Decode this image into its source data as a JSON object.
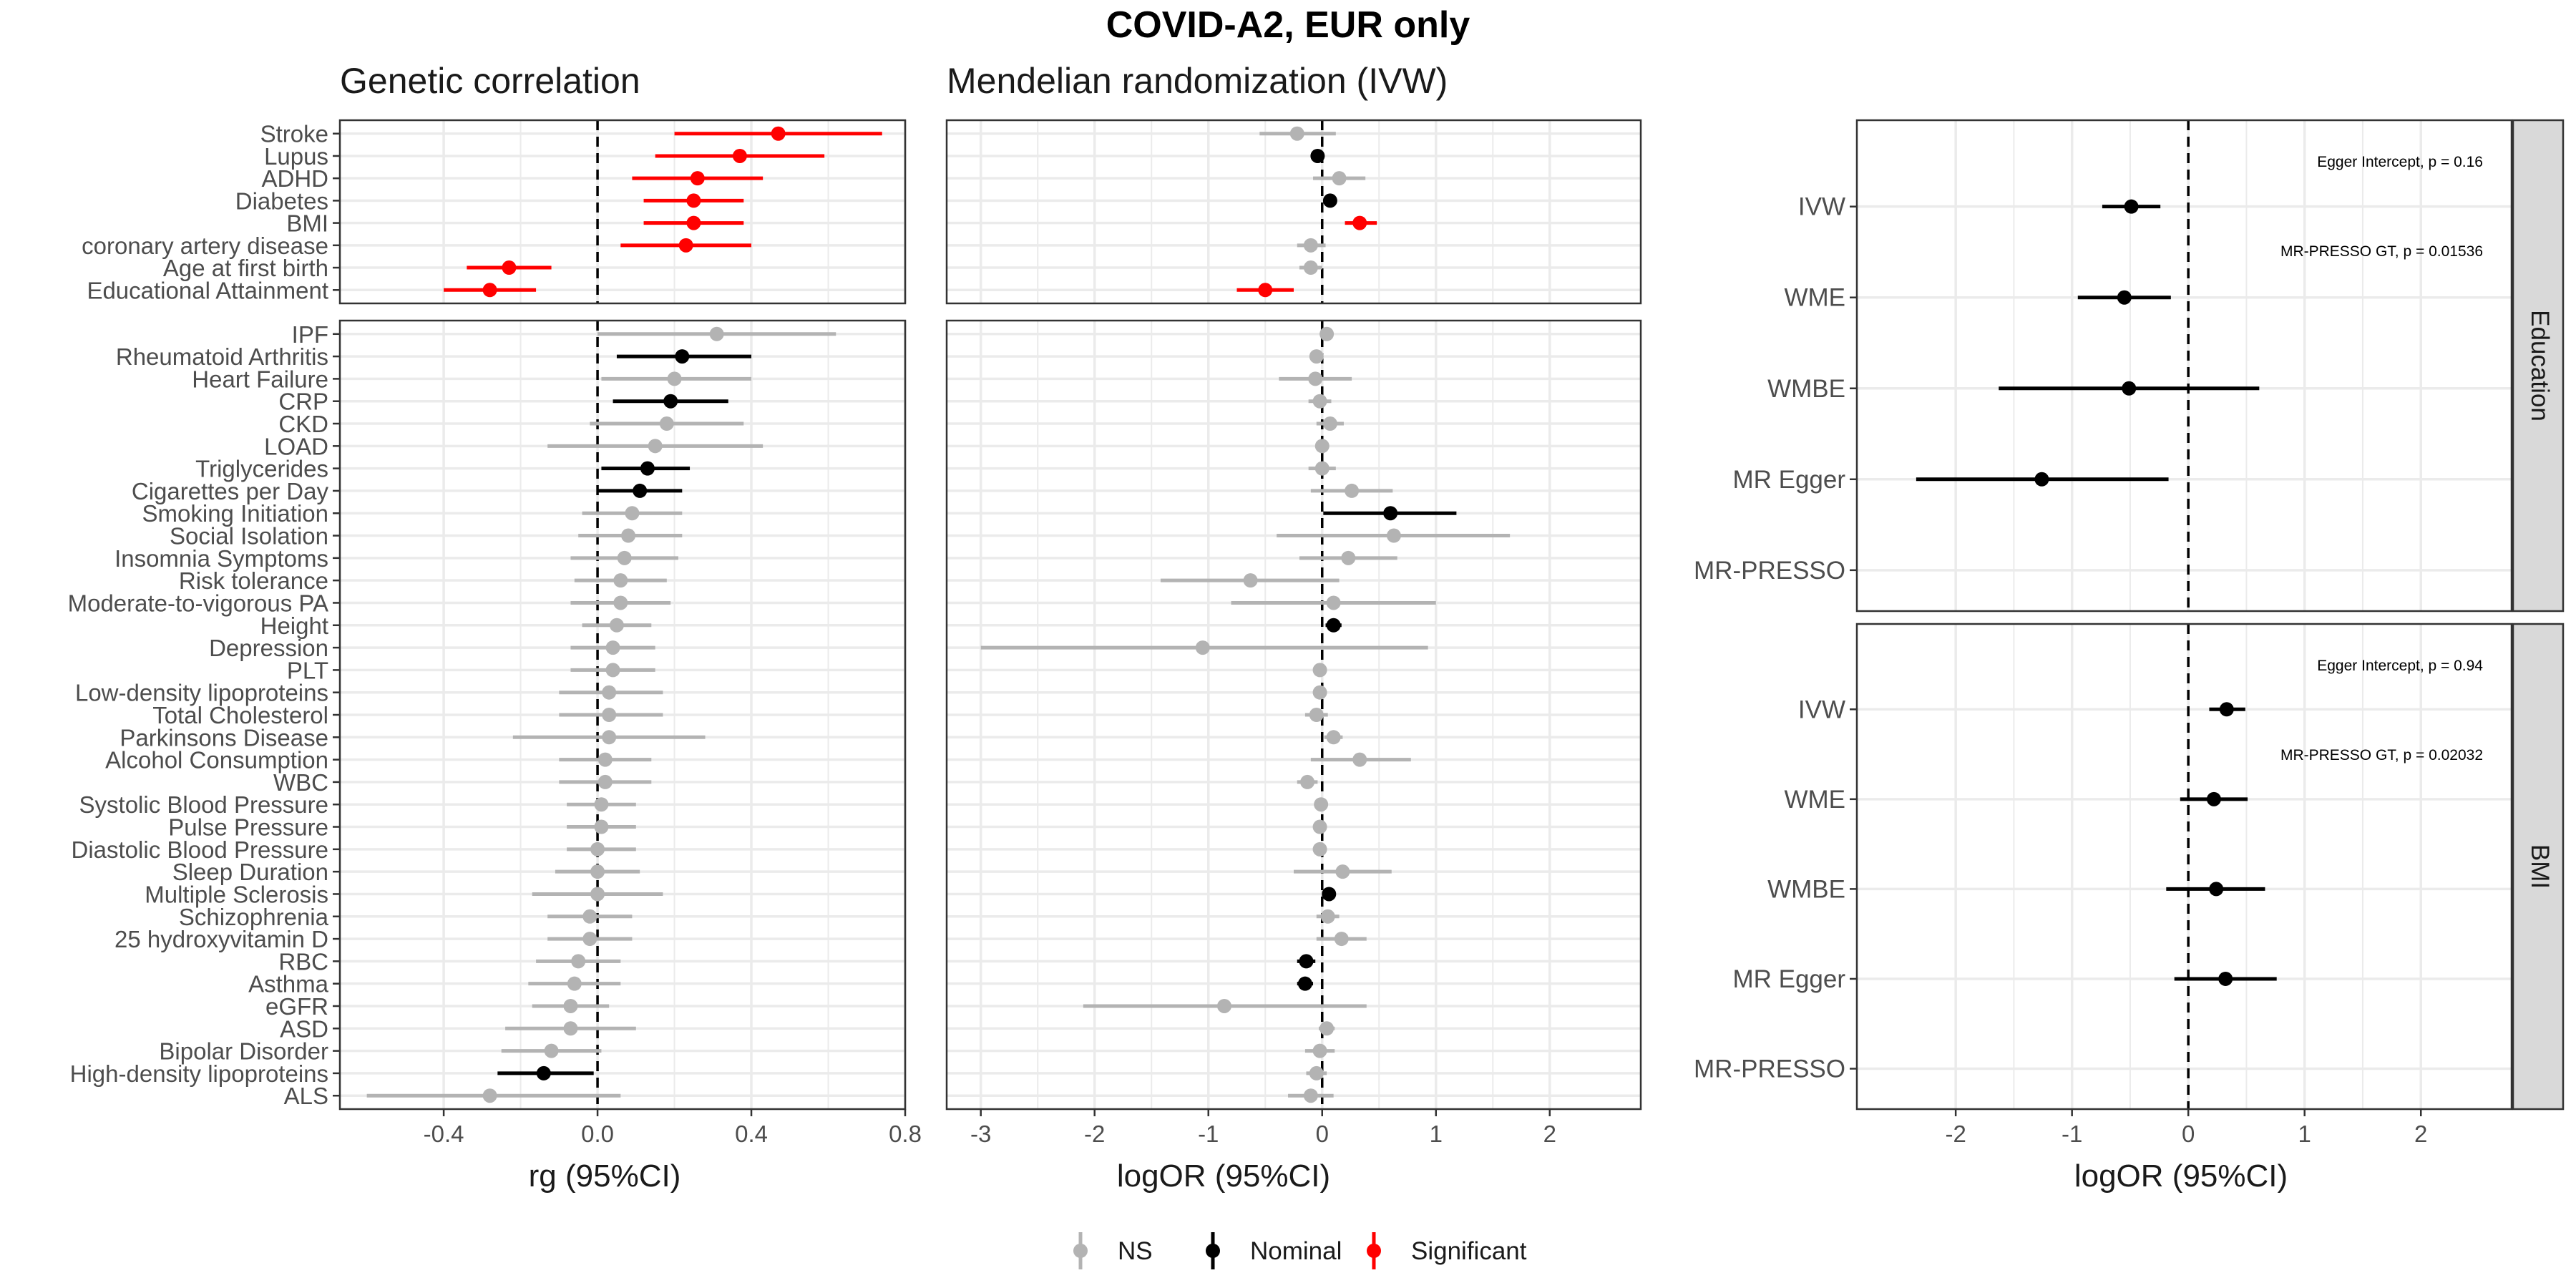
{
  "title": "COVID-A2, EUR only",
  "legend": {
    "items": [
      {
        "label": "NS",
        "color": "#b3b3b3"
      },
      {
        "label": "Nominal",
        "color": "#000000"
      },
      {
        "label": "Significant",
        "color": "#ff0000"
      }
    ]
  },
  "colors": {
    "NS": "#b3b3b3",
    "Nominal": "#000000",
    "Significant": "#ff0000",
    "panel_border": "#333333",
    "grid": "#ebebeb",
    "strip": "#d9d9d9"
  },
  "chart_data": [
    {
      "type": "scatter",
      "subtype": "forest",
      "title": "Genetic correlation",
      "xlabel": "rg (95%CI)",
      "xlim": [
        -0.67,
        0.8
      ],
      "xticks": [
        -0.4,
        0.0,
        0.4,
        0.8
      ],
      "xtick_labels": [
        "-0.4",
        "0.0",
        "0.4",
        "0.8"
      ],
      "reference_line": 0,
      "groups": [
        {
          "traits": [
            "Stroke",
            "Lupus",
            "ADHD",
            "Diabetes",
            "BMI",
            "coronary artery disease",
            "Age at first birth",
            "Educational Attainment"
          ],
          "est": [
            0.47,
            0.37,
            0.26,
            0.25,
            0.25,
            0.23,
            -0.23,
            -0.28
          ],
          "lo": [
            0.2,
            0.15,
            0.09,
            0.12,
            0.12,
            0.06,
            -0.34,
            -0.4
          ],
          "hi": [
            0.74,
            0.59,
            0.43,
            0.38,
            0.38,
            0.4,
            -0.12,
            -0.16
          ],
          "sig": [
            "Significant",
            "Significant",
            "Significant",
            "Significant",
            "Significant",
            "Significant",
            "Significant",
            "Significant"
          ]
        },
        {
          "traits": [
            "IPF",
            "Rheumatoid Arthritis",
            "Heart Failure",
            "CRP",
            "CKD",
            "LOAD",
            "Triglycerides",
            "Cigarettes per Day",
            "Smoking Initiation",
            "Social Isolation",
            "Insomnia Symptoms",
            "Risk tolerance",
            "Moderate-to-vigorous PA",
            "Height",
            "Depression",
            "PLT",
            "Low-density lipoproteins",
            "Total Cholesterol",
            "Parkinsons Disease",
            "Alcohol Consumption",
            "WBC",
            "Systolic Blood Pressure",
            "Pulse Pressure",
            "Diastolic Blood Pressure",
            "Sleep Duration",
            "Multiple Sclerosis",
            "Schizophrenia",
            "25 hydroxyvitamin D",
            "RBC",
            "Asthma",
            "eGFR",
            "ASD",
            "Bipolar Disorder",
            "High-density lipoproteins",
            "ALS"
          ],
          "est": [
            0.31,
            0.22,
            0.2,
            0.19,
            0.18,
            0.15,
            0.13,
            0.11,
            0.09,
            0.08,
            0.07,
            0.06,
            0.06,
            0.05,
            0.04,
            0.04,
            0.03,
            0.03,
            0.03,
            0.02,
            0.02,
            0.01,
            0.01,
            0.0,
            0.0,
            0.0,
            -0.02,
            -0.02,
            -0.05,
            -0.06,
            -0.07,
            -0.07,
            -0.12,
            -0.14,
            -0.28
          ],
          "lo": [
            0.0,
            0.05,
            0.01,
            0.04,
            -0.02,
            -0.13,
            0.01,
            0.0,
            -0.04,
            -0.05,
            -0.07,
            -0.06,
            -0.07,
            -0.04,
            -0.07,
            -0.07,
            -0.1,
            -0.1,
            -0.22,
            -0.1,
            -0.1,
            -0.08,
            -0.08,
            -0.08,
            -0.11,
            -0.17,
            -0.13,
            -0.13,
            -0.16,
            -0.18,
            -0.17,
            -0.24,
            -0.25,
            -0.26,
            -0.6
          ],
          "hi": [
            0.62,
            0.4,
            0.4,
            0.34,
            0.38,
            0.43,
            0.24,
            0.22,
            0.22,
            0.22,
            0.21,
            0.18,
            0.19,
            0.14,
            0.15,
            0.15,
            0.17,
            0.17,
            0.28,
            0.14,
            0.14,
            0.1,
            0.1,
            0.1,
            0.11,
            0.17,
            0.09,
            0.09,
            0.06,
            0.06,
            0.03,
            0.1,
            0.01,
            -0.01,
            0.06
          ],
          "sig": [
            "NS",
            "Nominal",
            "NS",
            "Nominal",
            "NS",
            "NS",
            "Nominal",
            "Nominal",
            "NS",
            "NS",
            "NS",
            "NS",
            "NS",
            "NS",
            "NS",
            "NS",
            "NS",
            "NS",
            "NS",
            "NS",
            "NS",
            "NS",
            "NS",
            "NS",
            "NS",
            "NS",
            "NS",
            "NS",
            "NS",
            "NS",
            "NS",
            "NS",
            "NS",
            "Nominal",
            "NS"
          ]
        }
      ]
    },
    {
      "type": "scatter",
      "subtype": "forest",
      "title": "Mendelian randomization (IVW)",
      "xlabel": "logOR (95%CI)",
      "xlim": [
        -3.3,
        2.8
      ],
      "xticks": [
        -3,
        -2,
        -1,
        0,
        1,
        2
      ],
      "xtick_labels": [
        "-3",
        "-2",
        "-1",
        "0",
        "1",
        "2"
      ],
      "reference_line": 0,
      "groups": [
        {
          "est": [
            -0.22,
            -0.04,
            0.15,
            0.07,
            0.33,
            -0.1,
            -0.1,
            -0.5
          ],
          "lo": [
            -0.55,
            -0.06,
            -0.08,
            0.03,
            0.2,
            -0.22,
            -0.2,
            -0.75
          ],
          "hi": [
            0.12,
            -0.02,
            0.38,
            0.11,
            0.48,
            0.03,
            0.0,
            -0.25
          ],
          "sig": [
            "NS",
            "Nominal",
            "NS",
            "Nominal",
            "Significant",
            "NS",
            "NS",
            "Significant"
          ]
        },
        {
          "est": [
            0.04,
            -0.05,
            -0.06,
            -0.02,
            0.07,
            0.0,
            0.0,
            0.26,
            0.6,
            0.63,
            0.23,
            -0.63,
            0.1,
            0.1,
            -1.05,
            -0.02,
            -0.02,
            -0.05,
            0.1,
            0.33,
            -0.13,
            -0.01,
            -0.02,
            -0.02,
            0.18,
            0.06,
            0.05,
            0.17,
            -0.14,
            -0.15,
            -0.86,
            0.04,
            -0.02,
            -0.05,
            -0.1
          ],
          "lo": [
            0.0,
            -0.1,
            -0.38,
            -0.12,
            -0.05,
            -0.06,
            -0.12,
            -0.1,
            0.01,
            -0.4,
            -0.2,
            -1.42,
            -0.8,
            0.03,
            -3.0,
            -0.08,
            -0.08,
            -0.15,
            0.02,
            -0.1,
            -0.22,
            -0.06,
            -0.07,
            -0.07,
            -0.25,
            0.02,
            -0.05,
            -0.05,
            -0.22,
            -0.22,
            -2.1,
            -0.03,
            -0.15,
            -0.14,
            -0.3
          ],
          "hi": [
            0.08,
            0.0,
            0.26,
            0.08,
            0.19,
            0.06,
            0.12,
            0.62,
            1.18,
            1.65,
            0.66,
            0.15,
            1.0,
            0.17,
            0.93,
            0.04,
            0.04,
            0.05,
            0.18,
            0.78,
            -0.04,
            0.04,
            0.03,
            0.03,
            0.61,
            0.1,
            0.15,
            0.39,
            -0.06,
            -0.08,
            0.39,
            0.11,
            0.11,
            0.04,
            0.1
          ],
          "sig": [
            "NS",
            "NS",
            "NS",
            "NS",
            "NS",
            "NS",
            "NS",
            "NS",
            "Nominal",
            "NS",
            "NS",
            "NS",
            "NS",
            "Nominal",
            "NS",
            "NS",
            "NS",
            "NS",
            "NS",
            "NS",
            "NS",
            "NS",
            "NS",
            "NS",
            "NS",
            "Nominal",
            "NS",
            "NS",
            "Nominal",
            "Nominal",
            "NS",
            "NS",
            "NS",
            "NS",
            "NS"
          ]
        }
      ]
    },
    {
      "type": "scatter",
      "subtype": "forest",
      "xlabel": "logOR (95%CI)",
      "xlim": [
        -2.85,
        2.78
      ],
      "xticks": [
        -2,
        -1,
        0,
        1,
        2
      ],
      "xtick_labels": [
        "-2",
        "-1",
        "0",
        "1",
        "2"
      ],
      "reference_line": 0,
      "methods": [
        "IVW",
        "WME",
        "WMBE",
        "MR Egger",
        "MR-PRESSO"
      ],
      "facets": [
        {
          "strip": "Education",
          "est": [
            -0.49,
            -0.55,
            -0.51,
            -1.26
          ],
          "lo": [
            -0.74,
            -0.95,
            -1.63,
            -2.34
          ],
          "hi": [
            -0.24,
            -0.15,
            0.61,
            -0.17
          ],
          "annotations": [
            "Egger Intercept, p = 0.16",
            "MR-PRESSO GT, p = 0.01536"
          ]
        },
        {
          "strip": "BMI",
          "est": [
            0.33,
            0.22,
            0.24,
            0.32
          ],
          "lo": [
            0.18,
            -0.07,
            -0.19,
            -0.12
          ],
          "hi": [
            0.49,
            0.51,
            0.66,
            0.76
          ],
          "annotations": [
            "Egger Intercept, p = 0.94",
            "MR-PRESSO GT, p = 0.02032"
          ]
        }
      ]
    }
  ]
}
